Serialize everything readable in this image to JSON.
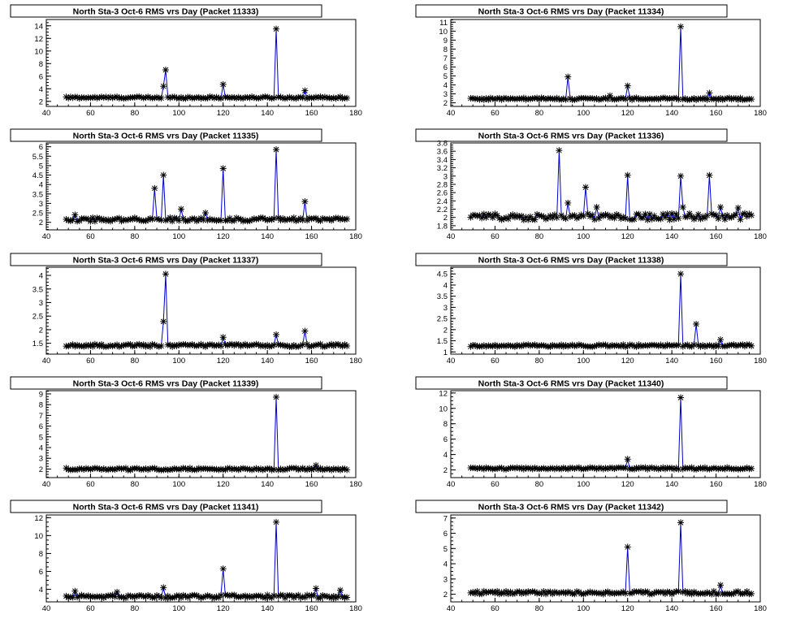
{
  "colors": {
    "line": "#0000cc",
    "marker": "#000000",
    "frame": "#000000",
    "background": "#ffffff"
  },
  "chart_data": [
    {
      "type": "line",
      "title": "North Sta-3 Oct-6 RMS vrs Day (Packet 11333)",
      "xlim": [
        40,
        180
      ],
      "ylim": [
        1.2,
        15
      ],
      "xticks": [
        40,
        60,
        80,
        100,
        120,
        140,
        160,
        180
      ],
      "yticks": [
        2,
        4,
        6,
        8,
        10,
        12,
        14
      ],
      "baseline": 2.6,
      "noise": 0.15,
      "spikes": [
        [
          93,
          4.4
        ],
        [
          94,
          7.0
        ],
        [
          120,
          4.7
        ],
        [
          144,
          13.5
        ],
        [
          157,
          3.7
        ]
      ]
    },
    {
      "type": "line",
      "title": "North Sta-3 Oct-6 RMS vrs Day (Packet 11334)",
      "xlim": [
        40,
        180
      ],
      "ylim": [
        1.6,
        11.3
      ],
      "xticks": [
        40,
        60,
        80,
        100,
        120,
        140,
        160,
        180
      ],
      "yticks": [
        2,
        3,
        4,
        5,
        6,
        7,
        8,
        9,
        10,
        11
      ],
      "baseline": 2.45,
      "noise": 0.12,
      "spikes": [
        [
          93,
          4.9
        ],
        [
          112,
          2.8
        ],
        [
          120,
          3.9
        ],
        [
          144,
          10.5
        ],
        [
          157,
          3.1
        ]
      ]
    },
    {
      "type": "line",
      "title": "North Sta-3 Oct-6 RMS vrs Day (Packet 11335)",
      "xlim": [
        40,
        180
      ],
      "ylim": [
        1.6,
        6.2
      ],
      "xticks": [
        40,
        60,
        80,
        100,
        120,
        140,
        160,
        180
      ],
      "yticks": [
        2,
        2.5,
        3,
        3.5,
        4,
        4.5,
        5,
        5.5,
        6
      ],
      "baseline": 2.15,
      "noise": 0.1,
      "spikes": [
        [
          53,
          2.4
        ],
        [
          89,
          3.8
        ],
        [
          93,
          4.5
        ],
        [
          101,
          2.7
        ],
        [
          112,
          2.5
        ],
        [
          120,
          4.85
        ],
        [
          144,
          5.85
        ],
        [
          157,
          3.1
        ]
      ]
    },
    {
      "type": "line",
      "title": "North Sta-3 Oct-6 RMS vrs Day (Packet 11336)",
      "xlim": [
        40,
        180
      ],
      "ylim": [
        1.7,
        3.8
      ],
      "xticks": [
        40,
        60,
        80,
        100,
        120,
        140,
        160,
        180
      ],
      "yticks": [
        1.8,
        2,
        2.2,
        2.4,
        2.6,
        2.8,
        3,
        3.2,
        3.4,
        3.6,
        3.8
      ],
      "baseline": 2.02,
      "noise": 0.08,
      "spikes": [
        [
          89,
          3.62
        ],
        [
          93,
          2.35
        ],
        [
          101,
          2.73
        ],
        [
          106,
          2.25
        ],
        [
          120,
          3.02
        ],
        [
          144,
          3.0
        ],
        [
          145,
          2.25
        ],
        [
          157,
          3.02
        ],
        [
          162,
          2.25
        ],
        [
          170,
          2.23
        ]
      ]
    },
    {
      "type": "line",
      "title": "North Sta-3 Oct-6 RMS vrs Day (Packet 11337)",
      "xlim": [
        40,
        180
      ],
      "ylim": [
        1.1,
        4.3
      ],
      "xticks": [
        40,
        60,
        80,
        100,
        120,
        140,
        160,
        180
      ],
      "yticks": [
        1.5,
        2,
        2.5,
        3,
        3.5,
        4
      ],
      "baseline": 1.42,
      "noise": 0.05,
      "spikes": [
        [
          93,
          2.3
        ],
        [
          94,
          4.05
        ],
        [
          120,
          1.72
        ],
        [
          144,
          1.82
        ],
        [
          157,
          1.95
        ]
      ]
    },
    {
      "type": "line",
      "title": "North Sta-3 Oct-6 RMS vrs Day (Packet 11338)",
      "xlim": [
        40,
        180
      ],
      "ylim": [
        0.9,
        4.8
      ],
      "xticks": [
        40,
        60,
        80,
        100,
        120,
        140,
        160,
        180
      ],
      "yticks": [
        1,
        1.5,
        2,
        2.5,
        3,
        3.5,
        4,
        4.5
      ],
      "baseline": 1.28,
      "noise": 0.05,
      "spikes": [
        [
          144,
          4.5
        ],
        [
          151,
          2.25
        ],
        [
          162,
          1.55
        ]
      ]
    },
    {
      "type": "line",
      "title": "North Sta-3 Oct-6 RMS vrs Day (Packet 11339)",
      "xlim": [
        40,
        180
      ],
      "ylim": [
        1.2,
        9.3
      ],
      "xticks": [
        40,
        60,
        80,
        100,
        120,
        140,
        160,
        180
      ],
      "yticks": [
        2,
        3,
        4,
        5,
        6,
        7,
        8,
        9
      ],
      "baseline": 2.0,
      "noise": 0.1,
      "spikes": [
        [
          144,
          8.7
        ],
        [
          162,
          2.35
        ]
      ]
    },
    {
      "type": "line",
      "title": "North Sta-3 Oct-6 RMS vrs Day (Packet 11340)",
      "xlim": [
        40,
        180
      ],
      "ylim": [
        1.0,
        12.3
      ],
      "xticks": [
        40,
        60,
        80,
        100,
        120,
        140,
        160,
        180
      ],
      "yticks": [
        2,
        4,
        6,
        8,
        10,
        12
      ],
      "baseline": 2.2,
      "noise": 0.12,
      "spikes": [
        [
          120,
          3.4
        ],
        [
          144,
          11.4
        ]
      ]
    },
    {
      "type": "line",
      "title": "North Sta-3 Oct-6 RMS vrs Day (Packet 11341)",
      "xlim": [
        40,
        180
      ],
      "ylim": [
        2.6,
        12.3
      ],
      "xticks": [
        40,
        60,
        80,
        100,
        120,
        140,
        160,
        180
      ],
      "yticks": [
        4,
        6,
        8,
        10,
        12
      ],
      "baseline": 3.2,
      "noise": 0.18,
      "spikes": [
        [
          53,
          3.8
        ],
        [
          72,
          3.7
        ],
        [
          93,
          4.2
        ],
        [
          120,
          6.3
        ],
        [
          144,
          11.5
        ],
        [
          162,
          4.1
        ],
        [
          173,
          3.9
        ]
      ]
    },
    {
      "type": "line",
      "title": "North Sta-3 Oct-6 RMS vrs Day (Packet 11342)",
      "xlim": [
        40,
        180
      ],
      "ylim": [
        1.5,
        7.2
      ],
      "xticks": [
        40,
        60,
        80,
        100,
        120,
        140,
        160,
        180
      ],
      "yticks": [
        2,
        3,
        4,
        5,
        6,
        7
      ],
      "baseline": 2.1,
      "noise": 0.1,
      "spikes": [
        [
          120,
          5.1
        ],
        [
          144,
          6.7
        ],
        [
          162,
          2.6
        ]
      ]
    }
  ]
}
